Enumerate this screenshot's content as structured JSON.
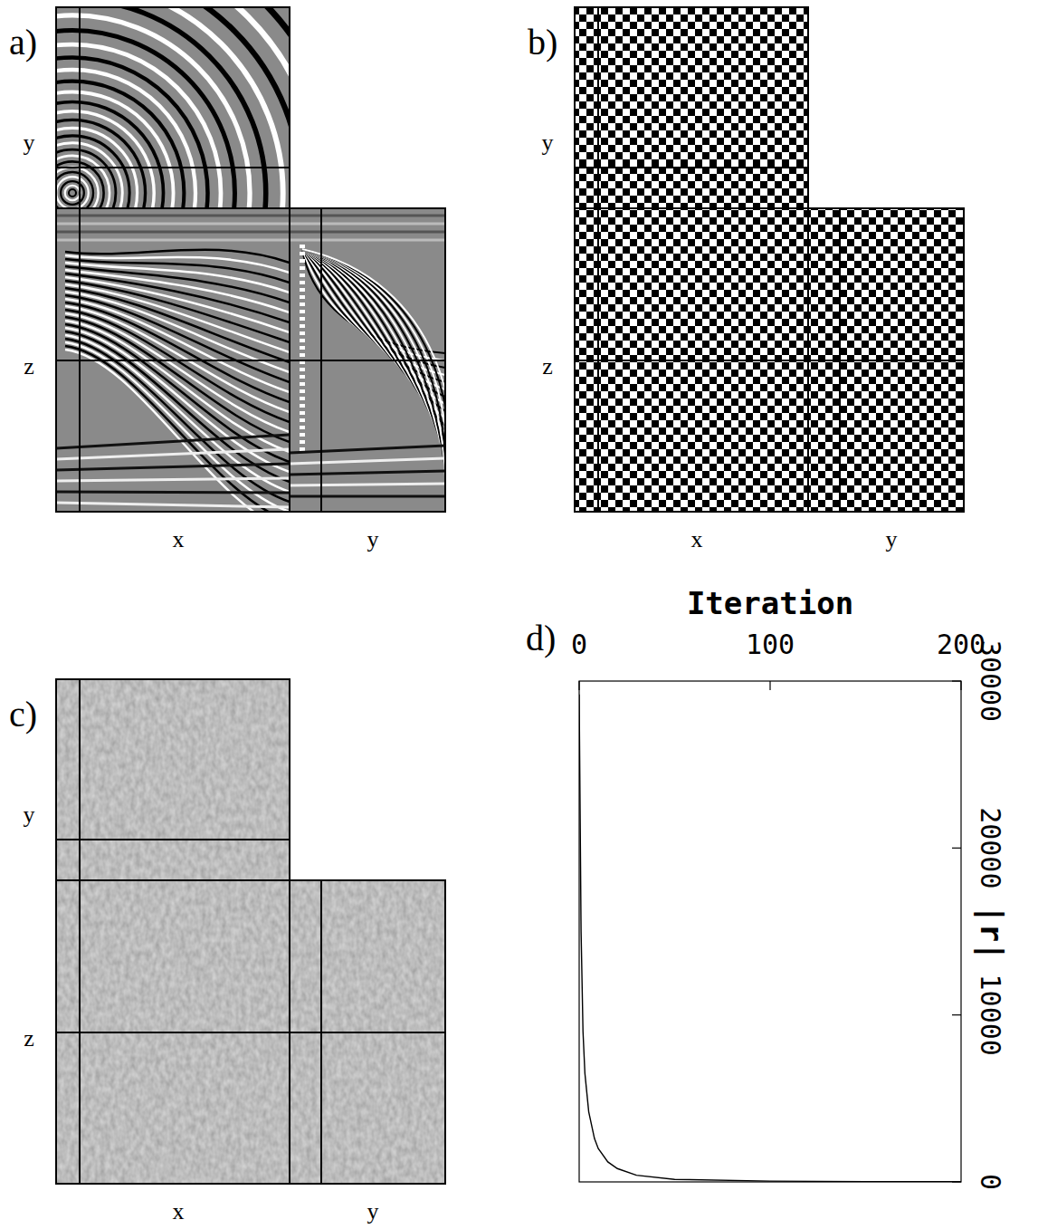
{
  "chart_data": [
    {
      "type": "wavefield",
      "panel": "a)",
      "labels": {
        "top_vertical": "y",
        "front_vertical": "z",
        "front_horizontal": "x",
        "side_horizontal": "y"
      }
    },
    {
      "type": "checkerboard",
      "panel": "b)",
      "labels": {
        "top_vertical": "y",
        "front_vertical": "z",
        "front_horizontal": "x",
        "side_horizontal": "y"
      }
    },
    {
      "type": "residual",
      "panel": "c)",
      "labels": {
        "top_vertical": "y",
        "front_vertical": "z",
        "front_horizontal": "x",
        "side_horizontal": "y"
      }
    },
    {
      "type": "line",
      "panel": "d)",
      "x_label": "Iteration",
      "y_label": "|r|",
      "x": [
        0,
        1,
        2,
        3,
        5,
        8,
        10,
        15,
        20,
        30,
        50,
        100,
        150,
        200
      ],
      "values": [
        29200,
        15000,
        9000,
        6500,
        4200,
        2600,
        2000,
        1200,
        800,
        400,
        150,
        50,
        20,
        10
      ],
      "xlim": [
        0,
        200
      ],
      "xticks": [
        0,
        100,
        200
      ],
      "ylim": [
        0,
        30000
      ],
      "yticks": [
        0,
        10000,
        20000,
        30000
      ],
      "color": "#000000"
    }
  ]
}
